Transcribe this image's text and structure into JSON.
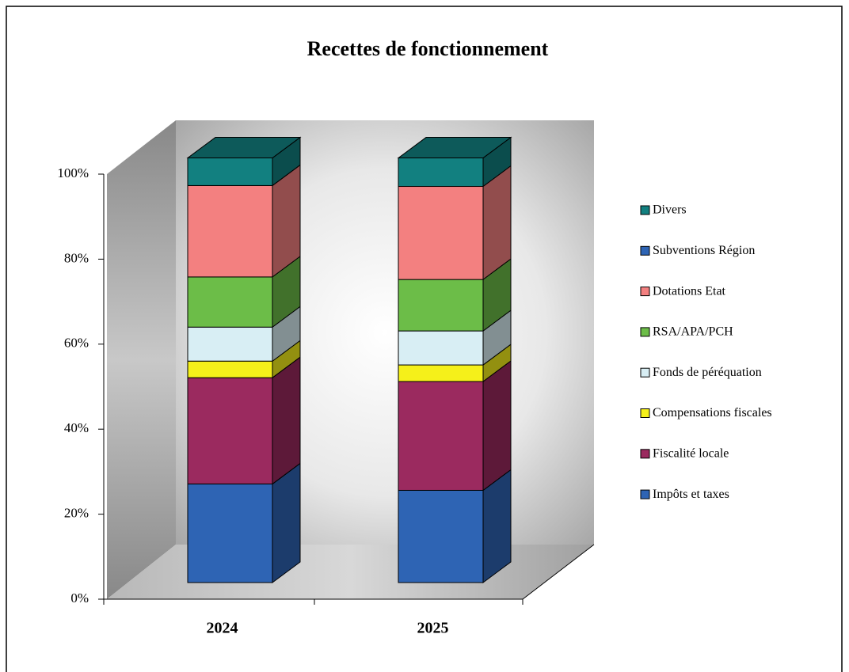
{
  "chart_data": {
    "type": "bar",
    "stacked": true,
    "title": "Recettes de fonctionnement",
    "categories": [
      "2024",
      "2025"
    ],
    "series": [
      {
        "name": "Impôts et taxes",
        "color": "#2e64b4",
        "values": [
          23.2,
          21.7
        ]
      },
      {
        "name": "Fiscalité locale",
        "color": "#9b2a5f",
        "values": [
          25.0,
          25.6
        ]
      },
      {
        "name": "Compensations fiscales",
        "color": "#f5f01a",
        "values": [
          3.9,
          3.9
        ]
      },
      {
        "name": "Fonds de péréquation",
        "color": "#d8eef4",
        "values": [
          8.0,
          8.0
        ]
      },
      {
        "name": "RSA/APA/PCH",
        "color": "#6cbd48",
        "values": [
          11.8,
          12.1
        ]
      },
      {
        "name": "Dotations Etat",
        "color": "#f38080",
        "values": [
          21.5,
          21.9
        ]
      },
      {
        "name": "Subventions Région",
        "color": "#2e64b4",
        "values": [
          0,
          0
        ]
      },
      {
        "name": "Divers",
        "color": "#128080",
        "values": [
          6.5,
          6.7
        ]
      }
    ],
    "ylim": [
      0,
      100
    ],
    "yticks": [
      {
        "value": 0,
        "label": "0%"
      },
      {
        "value": 20,
        "label": "20%"
      },
      {
        "value": 40,
        "label": "40%"
      },
      {
        "value": 60,
        "label": "60%"
      },
      {
        "value": 80,
        "label": "80%"
      },
      {
        "value": 100,
        "label": "100%"
      }
    ],
    "legend": "right"
  }
}
